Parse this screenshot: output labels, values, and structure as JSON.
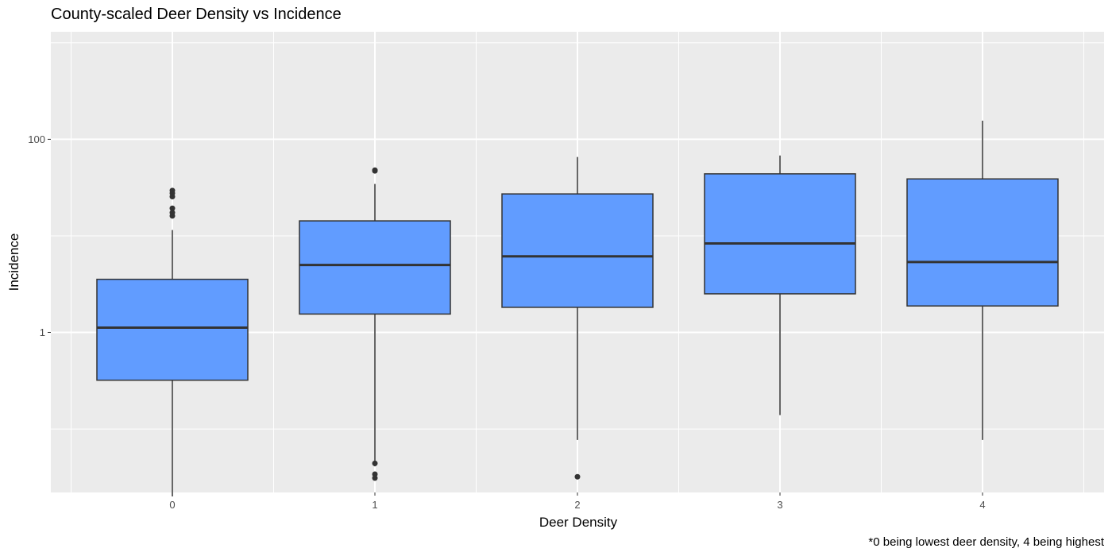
{
  "chart_data": {
    "type": "boxplot",
    "title": "County-scaled Deer Density vs Incidence",
    "xlabel": "Deer Density",
    "ylabel": "Incidence",
    "caption": "*0 being lowest deer density, 4 being highest",
    "y_scale": "log10",
    "ylim": [
      0.022,
      1300
    ],
    "y_ticks": [
      {
        "value": 1,
        "label": "1"
      },
      {
        "value": 100,
        "label": "100"
      }
    ],
    "grid": true,
    "colors": {
      "fill": "#619CFF",
      "stroke": "#333333",
      "panel": "#EBEBEB",
      "grid": "#FFFFFF"
    },
    "categories": [
      "0",
      "1",
      "2",
      "3",
      "4"
    ],
    "boxes": [
      {
        "category": "0",
        "whisker_low": 0.02,
        "q1": 0.32,
        "median": 1.12,
        "q3": 3.55,
        "whisker_high": 11.5,
        "outliers": [
          16.1,
          17.4,
          19.3,
          25.5,
          27.6,
          29.5
        ]
      },
      {
        "category": "1",
        "whisker_low": 0.041,
        "q1": 1.55,
        "median": 4.99,
        "q3": 14.3,
        "whisker_high": 34.5,
        "outliers": [
          0.031,
          0.034,
          0.044,
          47.1,
          47.9
        ]
      },
      {
        "category": "2",
        "whisker_low": 0.077,
        "q1": 1.82,
        "median": 6.13,
        "q3": 27.2,
        "whisker_high": 65.6,
        "outliers": [
          0.032
        ]
      },
      {
        "category": "3",
        "whisker_low": 0.139,
        "q1": 2.51,
        "median": 8.35,
        "q3": 43.9,
        "whisker_high": 68.0,
        "outliers": []
      },
      {
        "category": "4",
        "whisker_low": 0.077,
        "q1": 1.88,
        "median": 5.36,
        "q3": 38.9,
        "whisker_high": 156,
        "outliers": []
      }
    ]
  }
}
